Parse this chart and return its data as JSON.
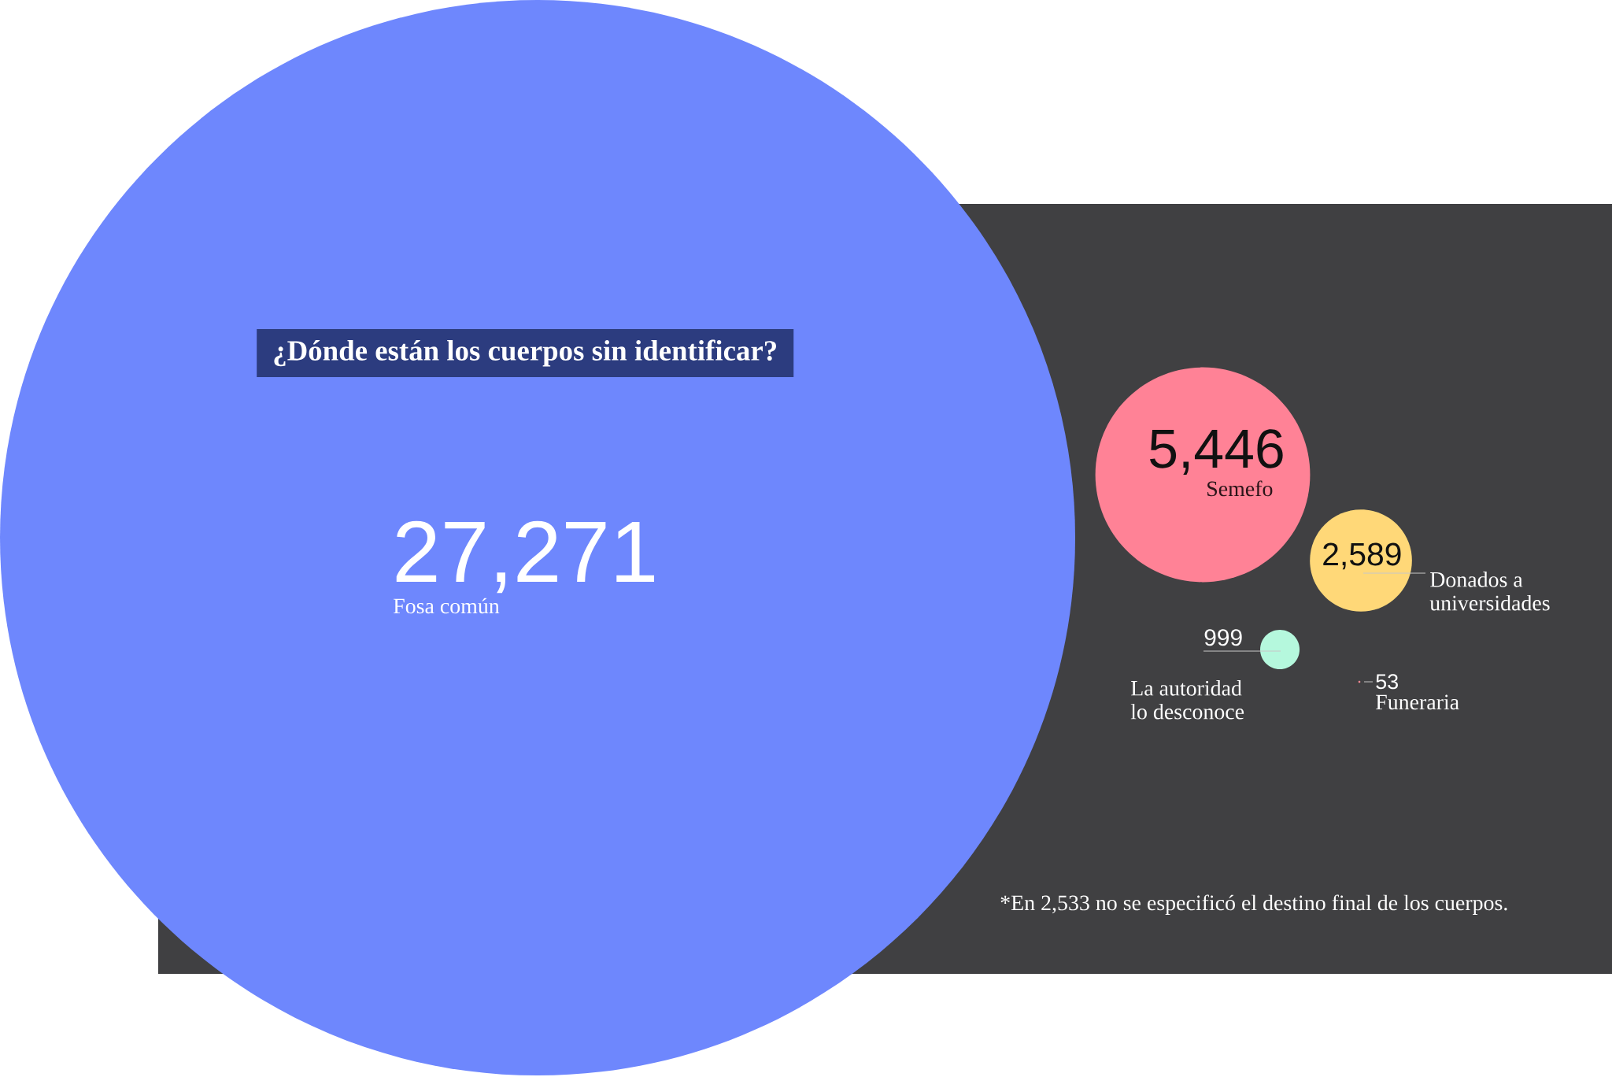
{
  "chart_data": {
    "type": "other",
    "title": "¿Dónde están los cuerpos sin identificar?",
    "categories": [
      "Fosa común",
      "Semefo",
      "Donados a universidades",
      "La autoridad lo desconoce",
      "Funeraria"
    ],
    "values": [
      27271,
      5446,
      2589,
      999,
      53
    ],
    "value_labels": [
      "27,271",
      "5,446",
      "2,589",
      "999",
      "53"
    ],
    "colors": [
      "#6e87fd",
      "#ff8296",
      "#ffd878",
      "#b5f8dd",
      "#ff8a96"
    ],
    "annotations": [
      "*En 2,533 no se especificó el destino final de los cuerpos."
    ]
  }
}
